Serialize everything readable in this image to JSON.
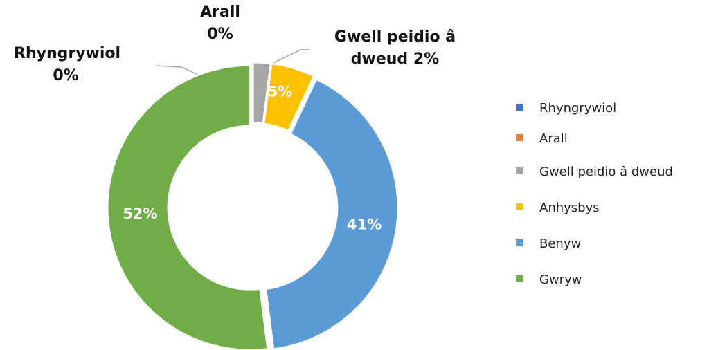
{
  "chart_data": {
    "type": "donut",
    "categories": [
      "Rhyngrywiol",
      "Arall",
      "Gwell peidio â dweud",
      "Anhysbys",
      "Benyw",
      "Gwryw"
    ],
    "values": [
      0,
      0,
      2,
      5,
      41,
      52
    ],
    "value_labels": [
      "0%",
      "0%",
      "2%",
      "5%",
      "41%",
      "52%"
    ],
    "colors": [
      "#4472c4",
      "#ed7d31",
      "#a5a5a5",
      "#ffc000",
      "#5b9bd5",
      "#70ad47"
    ],
    "legend": "right"
  }
}
